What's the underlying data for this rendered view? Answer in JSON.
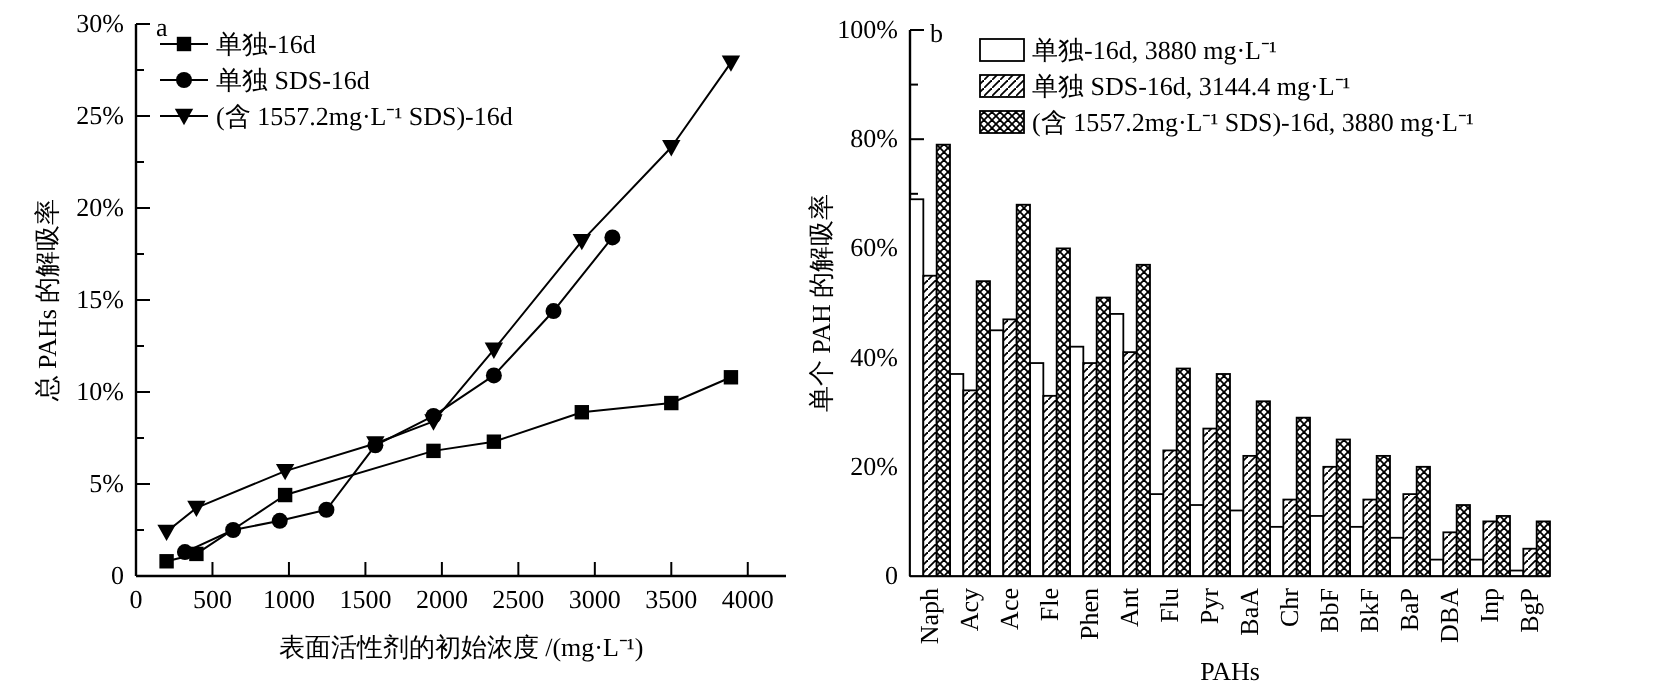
{
  "chart_data": [
    {
      "type": "line",
      "xlabel": "表面活性剂的初始浓度 /(mg·L⁻¹)",
      "ylabel": "总 PAHs 的解吸率",
      "annotations": [
        "a"
      ],
      "legend": "top left",
      "xlim": [
        0,
        4250
      ],
      "xticks": [
        0,
        500,
        1000,
        1500,
        2000,
        2500,
        3000,
        3500,
        4000
      ],
      "ylim": [
        0,
        30
      ],
      "yticks": [
        0,
        {
          "value": 2.5,
          "label": null
        },
        {
          "value": 5,
          "label": "5%"
        },
        {
          "value": 7.5,
          "label": null
        },
        {
          "value": 10,
          "label": "10%"
        },
        {
          "value": 12.5,
          "label": null
        },
        {
          "value": 15,
          "label": "15%"
        },
        {
          "value": 17.5,
          "label": null
        },
        {
          "value": 20,
          "label": "20%"
        },
        {
          "value": 22.5,
          "label": null
        },
        {
          "value": 25,
          "label": "25%"
        },
        {
          "value": 27.5,
          "label": null
        },
        {
          "value": 30,
          "label": "30%"
        }
      ],
      "series": [
        {
          "name": "单独-16d",
          "color": "#000000",
          "marker": "square",
          "x": [
            200,
            395,
            975,
            1945,
            2340,
            2915,
            3500,
            3890
          ],
          "values": [
            0.8,
            1.2,
            4.4,
            6.8,
            7.3,
            8.9,
            9.4,
            10.8
          ]
        },
        {
          "name": "单独 SDS-16d",
          "color": "#000000",
          "marker": "circle",
          "x": [
            320,
            635,
            940,
            1245,
            1565,
            1945,
            2340,
            2730,
            3115
          ],
          "values": [
            1.3,
            2.5,
            3.0,
            3.6,
            7.1,
            8.7,
            10.9,
            14.4,
            18.4
          ]
        },
        {
          "name": "(含 1557.2mg·L⁻¹ SDS)-16d",
          "color": "#000000",
          "marker": "triangle",
          "x": [
            200,
            395,
            975,
            1565,
            1945,
            2340,
            2915,
            3500,
            3890
          ],
          "values": [
            2.4,
            3.7,
            5.7,
            7.2,
            8.4,
            12.3,
            18.2,
            23.3,
            27.9
          ]
        }
      ]
    },
    {
      "type": "bar",
      "xlabel": "PAHs",
      "ylabel": "单个 PAH 的解吸率",
      "annotations": [
        "b"
      ],
      "legend": "top",
      "categories": [
        "Naph",
        "Acy",
        "Ace",
        "Fle",
        "Phen",
        "Ant",
        "Flu",
        "Pyr",
        "BaA",
        "Chr",
        "BbF",
        "BkF",
        "BaP",
        "DBA",
        "Inp",
        "BgP"
      ],
      "ylim": [
        0,
        100
      ],
      "yticks": [
        0,
        {
          "value": 10,
          "label": null
        },
        {
          "value": 20,
          "label": "20%"
        },
        {
          "value": 30,
          "label": null
        },
        {
          "value": 40,
          "label": "40%"
        },
        {
          "value": 50,
          "label": null
        },
        {
          "value": 60,
          "label": "60%"
        },
        {
          "value": 70,
          "label": null
        },
        {
          "value": 80,
          "label": "80%"
        },
        {
          "value": 90,
          "label": null
        },
        {
          "value": 100,
          "label": "100%"
        }
      ],
      "series": [
        {
          "name": "单独-16d, 3880 mg·L⁻¹",
          "color": "#000000",
          "values": [
            69,
            37,
            45,
            39,
            42,
            48,
            15,
            13,
            12,
            9,
            11,
            9,
            7,
            3,
            3,
            1
          ]
        },
        {
          "name": "单独 SDS-16d, 3144.4 mg·L⁻¹",
          "color": "#000000",
          "values": [
            55,
            34,
            47,
            33,
            39,
            41,
            23,
            27,
            22,
            14,
            20,
            14,
            15,
            8,
            10,
            5
          ]
        },
        {
          "name": "(含 1557.2mg·L⁻¹ SDS)-16d, 3880 mg·L⁻¹",
          "color": "#000000",
          "values": [
            79,
            54,
            68,
            60,
            51,
            57,
            38,
            37,
            32,
            29,
            25,
            22,
            20,
            13,
            11,
            10
          ]
        }
      ]
    }
  ]
}
